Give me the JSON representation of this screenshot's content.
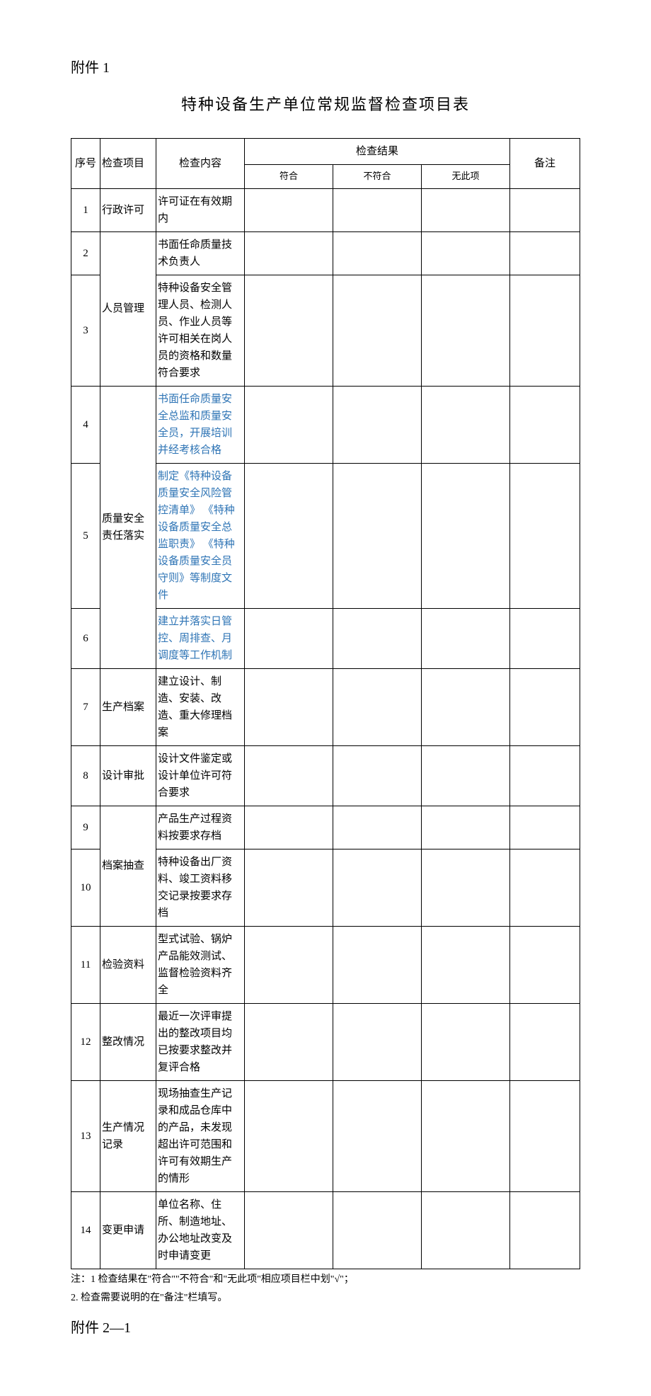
{
  "attachment": "附件 1",
  "title": "特种设备生产单位常规监督检查项目表",
  "head": {
    "idx": "序号",
    "cat": "检查项目",
    "content": "检查内容",
    "resGroup": "检查结果",
    "r1": "符合",
    "r2": "不符合",
    "r3": "无此项",
    "note": "备注"
  },
  "rows": [
    {
      "n": "1",
      "cat": "行政许可",
      "span": 1,
      "txt": "许可证在有效期内",
      "cls": ""
    },
    {
      "n": "2",
      "cat": "人员管理",
      "span": 2,
      "txt": "书面任命质量技术负责人",
      "cls": ""
    },
    {
      "n": "3",
      "txt": "特种设备安全管理人员、检测人员、作业人员等许可相关在岗人员的资格和数量符合要求",
      "cls": ""
    },
    {
      "n": "4",
      "cat": "质量安全责任落实",
      "span": 3,
      "txt": "书面任命质量安全总监和质量安全员，开展培训并经考核合格",
      "cls": "link"
    },
    {
      "n": "5",
      "txt": "制定《特种设备质量安全风险管控清单》 《特种设备质量安全总监职责》 《特种设备质量安全员守则》等制度文件",
      "cls": "link"
    },
    {
      "n": "6",
      "txt": "建立并落实日管控、周排查、月调度等工作机制",
      "cls": "link"
    },
    {
      "n": "7",
      "cat": "生产档案",
      "span": 1,
      "txt": "建立设计、制造、安装、改造、重大修理档案",
      "cls": ""
    },
    {
      "n": "8",
      "cat": "设计审批",
      "span": 1,
      "txt": "设计文件鉴定或设计单位许可符合要求",
      "cls": ""
    },
    {
      "n": "9",
      "cat": "档案抽查",
      "span": 2,
      "txt": "产品生产过程资料按要求存档",
      "cls": ""
    },
    {
      "n": "10",
      "txt": "特种设备出厂资料、竣工资料移交记录按要求存档",
      "cls": ""
    },
    {
      "n": "11",
      "cat": "检验资料",
      "span": 1,
      "txt": "型式试验、锅炉产品能效测试、监督检验资料齐全",
      "cls": ""
    },
    {
      "n": "12",
      "cat": "整改情况",
      "span": 1,
      "txt": "最近一次评审提出的整改项目均已按要求整改并复评合格",
      "cls": ""
    },
    {
      "n": "13",
      "cat": "生产情况记录",
      "span": 1,
      "txt": "现场抽查生产记录和成品仓库中的产品，未发现超出许可范围和许可有效期生产的情形",
      "cls": ""
    },
    {
      "n": "14",
      "cat": "变更申请",
      "span": 1,
      "txt": "单位名称、住所、制造地址、办公地址改变及时申请变更",
      "cls": ""
    }
  ],
  "footnote1": "注：1 检查结果在\"符合\"\"不符合\"和\"无此项\"相应项目栏中划\"√\"；",
  "footnote2": "2. 检查需要说明的在\"备注\"栏填写。",
  "attachment2": "附件 2—1"
}
